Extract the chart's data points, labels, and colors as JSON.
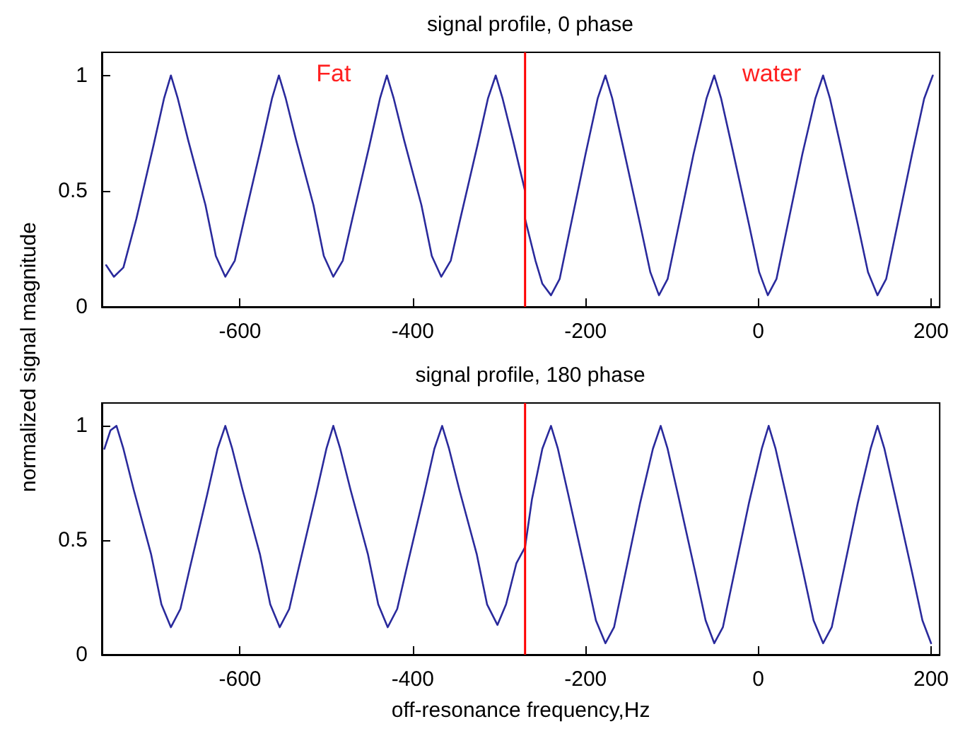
{
  "chart_data": [
    {
      "type": "line",
      "title": "signal profile, 0 phase",
      "xlim": [
        -760,
        210
      ],
      "xticks": [
        -600,
        -400,
        -200,
        0,
        200
      ],
      "ylim": [
        0,
        1.1
      ],
      "yticks": [
        0,
        0.5,
        1
      ],
      "grid": false,
      "marker": "none",
      "line_style": "solid",
      "series": [
        {
          "color": "#2a2a9c",
          "x": [
            -755,
            -746,
            -735,
            -720,
            -700,
            -688,
            -680,
            -672,
            -660,
            -640,
            -628,
            -617,
            -606,
            -595,
            -575,
            -563,
            -555,
            -547,
            -535,
            -515,
            -503,
            -492,
            -481,
            -470,
            -450,
            -438,
            -430,
            -422,
            -410,
            -390,
            -378,
            -367,
            -356,
            -345,
            -325,
            -313,
            -304,
            -296,
            -284,
            -270,
            -270,
            -258,
            -250,
            -240,
            -230,
            -220,
            -200,
            -186,
            -177,
            -169,
            -157,
            -137,
            -125,
            -115,
            -105,
            -95,
            -75,
            -60,
            -51,
            -43,
            -31,
            -11,
            1,
            11,
            21,
            31,
            51,
            66,
            75,
            83,
            95,
            115,
            127,
            138,
            148,
            158,
            178,
            192,
            202
          ],
          "values": [
            0.18,
            0.13,
            0.17,
            0.38,
            0.7,
            0.9,
            1,
            0.9,
            0.72,
            0.44,
            0.22,
            0.13,
            0.2,
            0.38,
            0.7,
            0.9,
            1,
            0.9,
            0.72,
            0.44,
            0.22,
            0.13,
            0.2,
            0.38,
            0.7,
            0.9,
            1,
            0.9,
            0.72,
            0.44,
            0.22,
            0.13,
            0.2,
            0.38,
            0.7,
            0.9,
            1,
            0.9,
            0.72,
            0.5,
            0.38,
            0.2,
            0.1,
            0.05,
            0.12,
            0.3,
            0.66,
            0.9,
            1,
            0.9,
            0.7,
            0.36,
            0.15,
            0.05,
            0.12,
            0.3,
            0.66,
            0.9,
            1,
            0.9,
            0.7,
            0.36,
            0.15,
            0.05,
            0.12,
            0.3,
            0.66,
            0.9,
            1,
            0.9,
            0.7,
            0.36,
            0.15,
            0.05,
            0.12,
            0.3,
            0.66,
            0.9,
            1
          ]
        }
      ],
      "ref_lines": [
        {
          "axis": "x",
          "value": -270,
          "color": "#ff0000"
        }
      ],
      "annotations": [
        "Fat",
        "water"
      ]
    },
    {
      "type": "line",
      "title": "signal profile, 180 phase",
      "xlabel": "off-resonance frequency,Hz",
      "ylabel": "normalized signal magnitude",
      "xlim": [
        -760,
        210
      ],
      "xticks": [
        -600,
        -400,
        -200,
        0,
        200
      ],
      "ylim": [
        0,
        1.1
      ],
      "yticks": [
        0,
        0.5,
        1
      ],
      "grid": false,
      "marker": "none",
      "line_style": "solid",
      "series": [
        {
          "color": "#2a2a9c",
          "x": [
            -757,
            -750,
            -743,
            -735,
            -723,
            -703,
            -691,
            -680,
            -669,
            -658,
            -638,
            -626,
            -617,
            -609,
            -597,
            -577,
            -565,
            -554,
            -543,
            -532,
            -512,
            -500,
            -492,
            -484,
            -472,
            -452,
            -440,
            -429,
            -418,
            -407,
            -387,
            -375,
            -366,
            -358,
            -346,
            -326,
            -314,
            -302,
            -292,
            -280,
            -270,
            -262,
            -250,
            -240,
            -232,
            -220,
            -200,
            -188,
            -177,
            -167,
            -157,
            -137,
            -122,
            -113,
            -105,
            -93,
            -73,
            -61,
            -51,
            -41,
            -31,
            -11,
            4,
            12,
            20,
            32,
            52,
            64,
            75,
            85,
            95,
            115,
            130,
            138,
            146,
            158,
            178,
            190,
            200
          ],
          "values": [
            0.9,
            0.98,
            1,
            0.9,
            0.72,
            0.44,
            0.22,
            0.12,
            0.2,
            0.38,
            0.7,
            0.9,
            1,
            0.9,
            0.72,
            0.44,
            0.22,
            0.12,
            0.2,
            0.38,
            0.7,
            0.9,
            1,
            0.9,
            0.72,
            0.44,
            0.22,
            0.12,
            0.2,
            0.38,
            0.7,
            0.9,
            1,
            0.9,
            0.72,
            0.44,
            0.22,
            0.13,
            0.22,
            0.4,
            0.47,
            0.68,
            0.9,
            1,
            0.9,
            0.7,
            0.36,
            0.15,
            0.05,
            0.12,
            0.3,
            0.66,
            0.9,
            1,
            0.9,
            0.7,
            0.36,
            0.15,
            0.05,
            0.12,
            0.3,
            0.66,
            0.9,
            1,
            0.9,
            0.7,
            0.36,
            0.15,
            0.05,
            0.12,
            0.3,
            0.66,
            0.9,
            1,
            0.9,
            0.7,
            0.36,
            0.15,
            0.05
          ]
        }
      ],
      "ref_lines": [
        {
          "axis": "x",
          "value": -270,
          "color": "#ff0000"
        }
      ]
    }
  ]
}
